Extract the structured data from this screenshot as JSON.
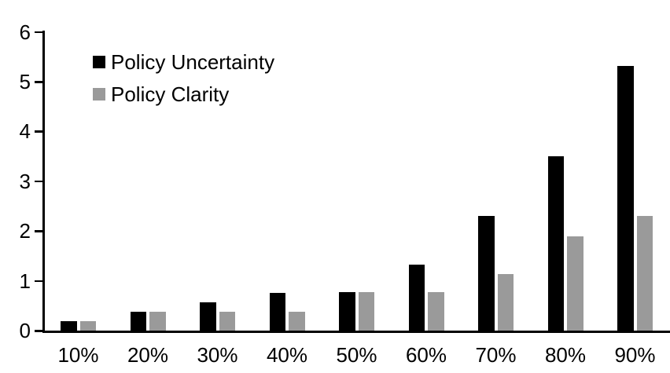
{
  "chart_data": {
    "type": "bar",
    "title": "",
    "xlabel": "",
    "ylabel": "",
    "categories": [
      "10%",
      "20%",
      "30%",
      "40%",
      "50%",
      "60%",
      "70%",
      "80%",
      "90%"
    ],
    "series": [
      {
        "name": "Policy Uncertainty",
        "color": "#000000",
        "values": [
          0.19,
          0.38,
          0.57,
          0.76,
          0.77,
          1.33,
          2.31,
          3.5,
          5.31
        ]
      },
      {
        "name": "Policy Clarity",
        "color": "#9a9a9a",
        "values": [
          0.19,
          0.38,
          0.38,
          0.38,
          0.77,
          0.77,
          1.14,
          1.9,
          2.3
        ]
      }
    ],
    "ylim": [
      0,
      6
    ],
    "yticks": [
      0,
      1,
      2,
      3,
      4,
      5,
      6
    ],
    "grid": false,
    "legend_position": "top-left",
    "axis_color": "#000000",
    "text_color": "#000000",
    "background_color": "#ffffff"
  }
}
